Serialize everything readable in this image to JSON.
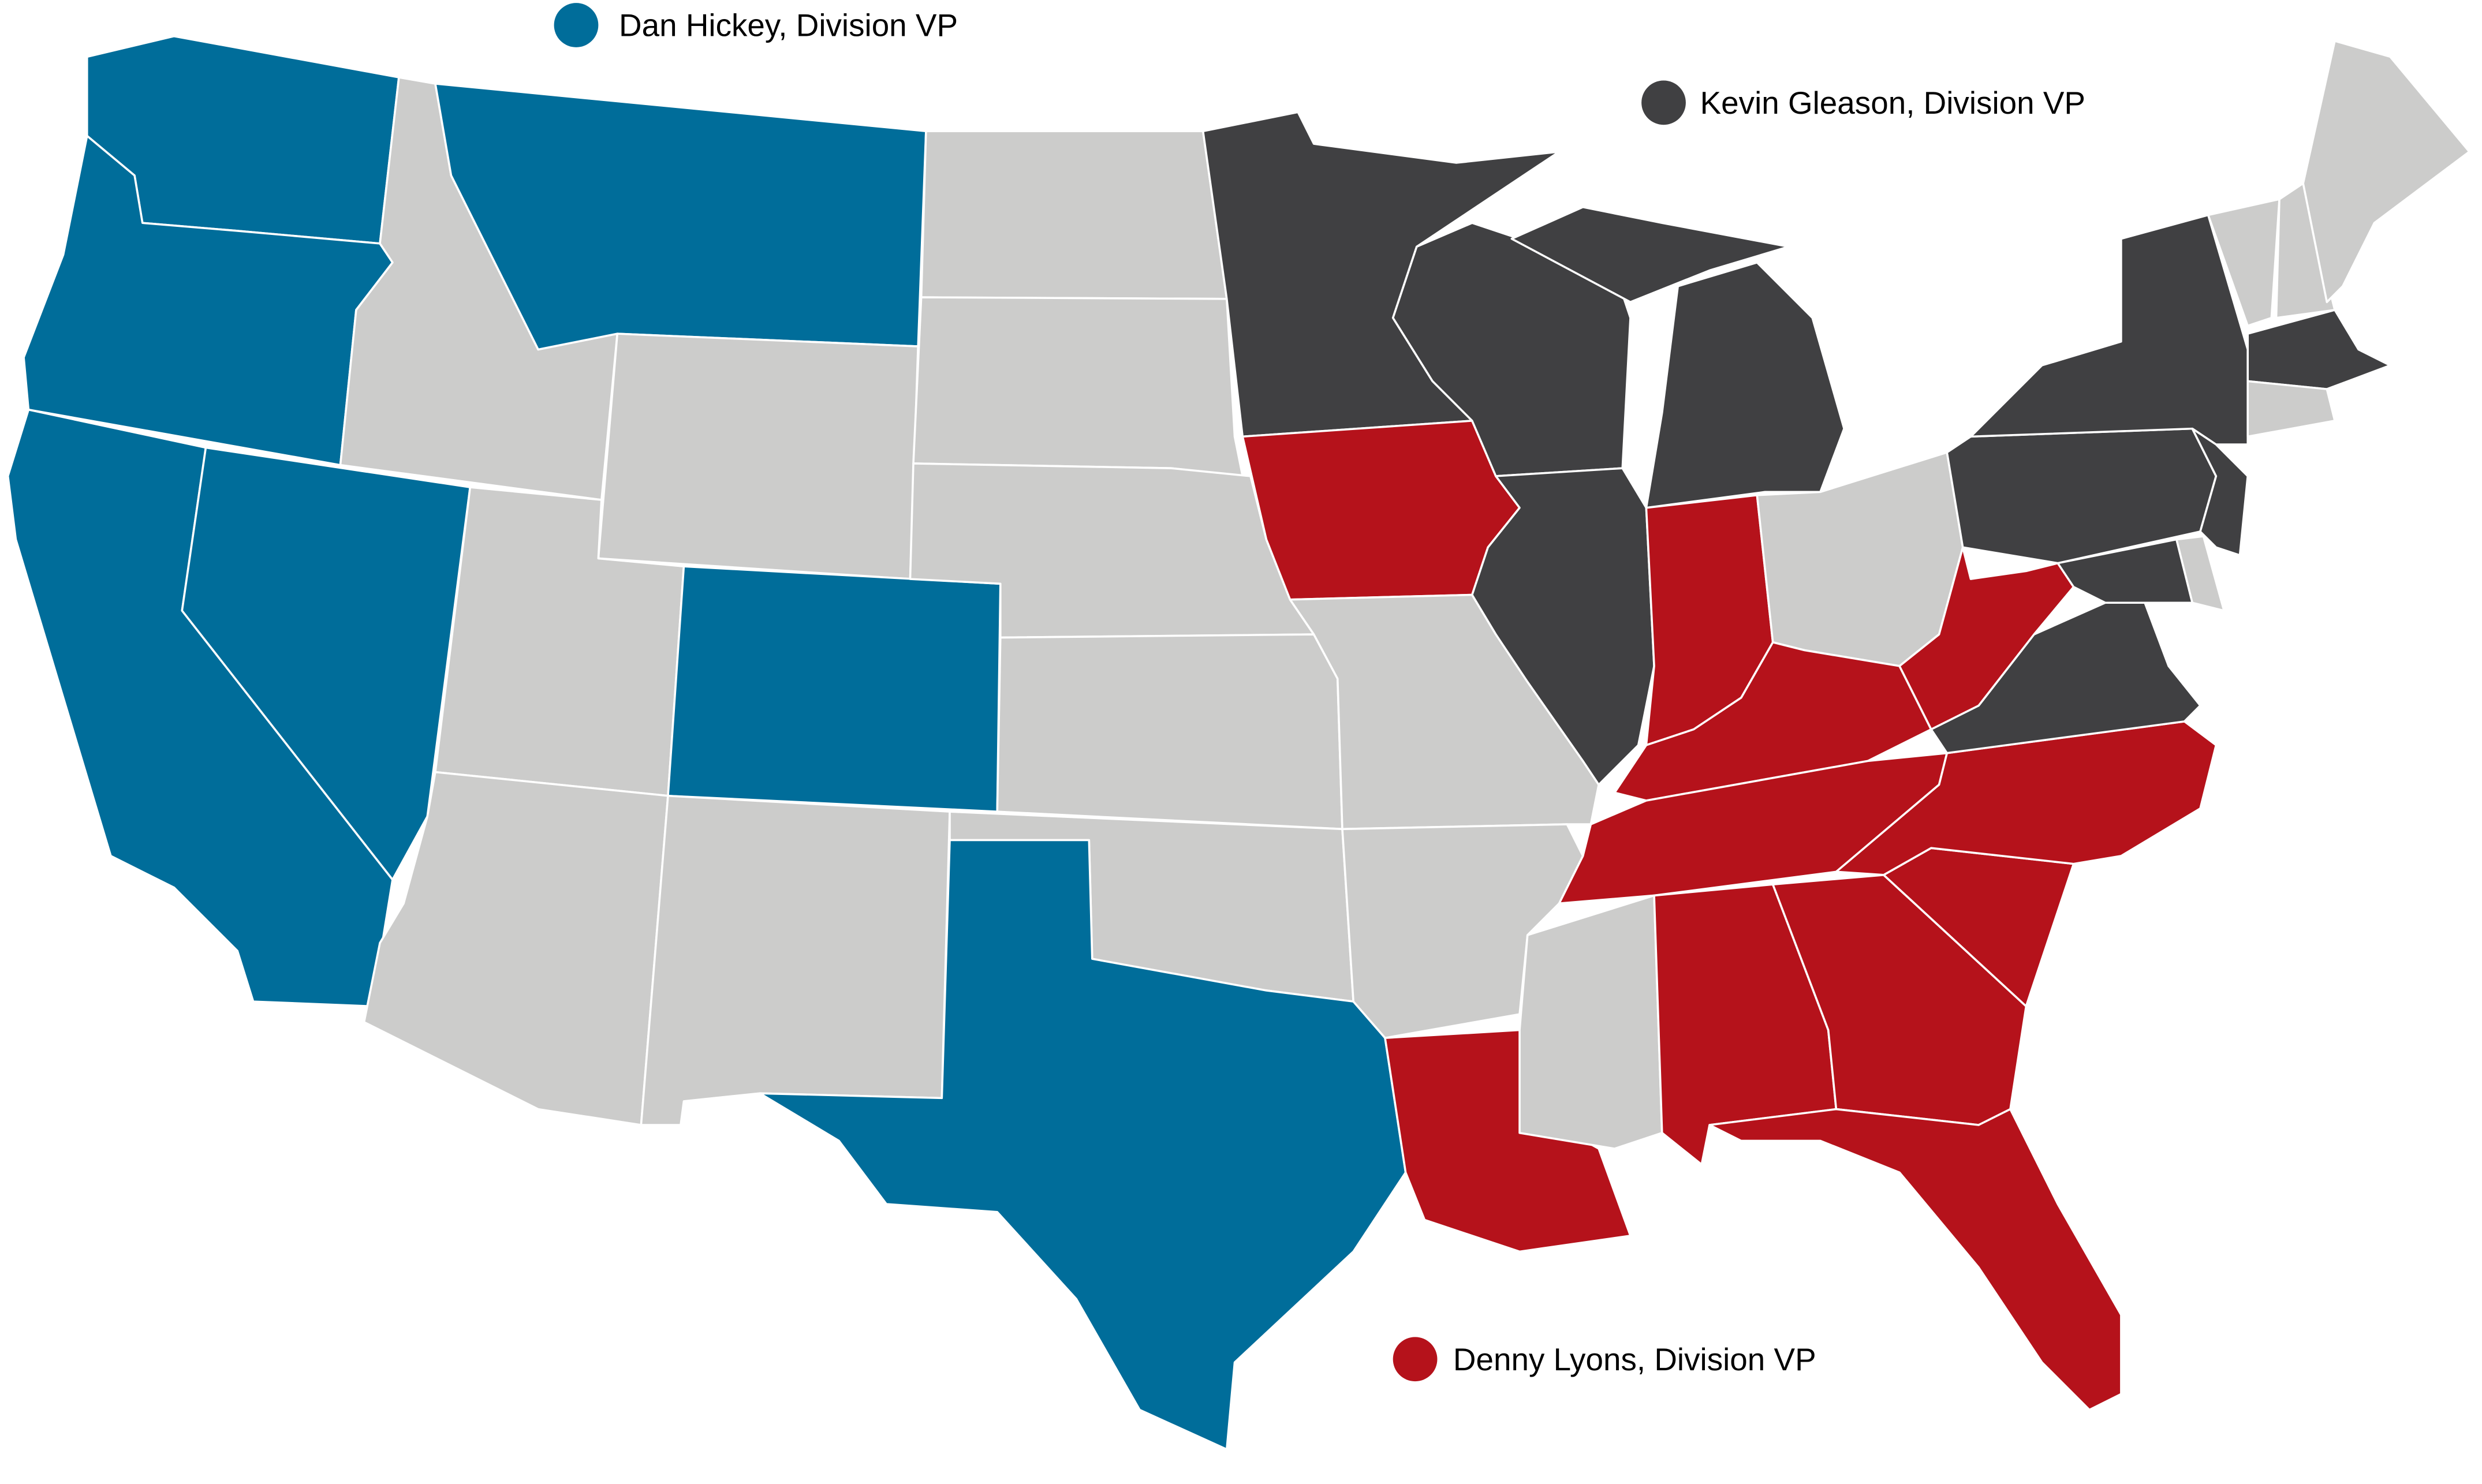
{
  "legend": [
    {
      "label": "Dan Hickey, Division VP",
      "division": "west"
    },
    {
      "label": "Kevin Gleason, Division VP",
      "division": "north"
    },
    {
      "label": "Denny Lyons, Division VP",
      "division": "south"
    }
  ],
  "colors": {
    "west": "#006d9a",
    "north": "#404042",
    "south": "#b5121b",
    "unassigned": "#cccccb"
  },
  "divisions": {
    "west": [
      "WA",
      "OR",
      "CA",
      "NV",
      "MT",
      "CO",
      "TX"
    ],
    "north": [
      "MN",
      "WI",
      "MI",
      "MI-UP",
      "IL",
      "NY",
      "PA",
      "NJ",
      "MD",
      "VA",
      "MA"
    ],
    "south": [
      "IA",
      "IN",
      "KY",
      "TN",
      "WV",
      "NC",
      "SC",
      "GA",
      "AL",
      "FL",
      "LA"
    ]
  }
}
